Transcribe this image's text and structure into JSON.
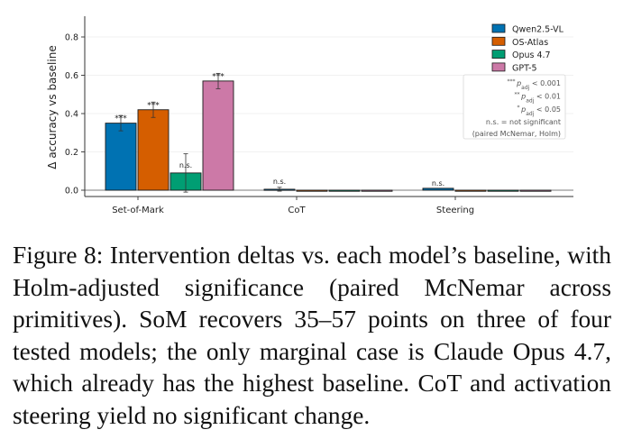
{
  "chart_data": {
    "type": "bar",
    "ylabel": "Δ accuracy vs baseline",
    "xlabel": "",
    "ylim": [
      -0.03,
      0.9
    ],
    "yticks": [
      "0.0",
      "0.2",
      "0.4",
      "0.6",
      "0.8"
    ],
    "categories": [
      "Set-of-Mark",
      "CoT",
      "Steering"
    ],
    "grid": "horizontal",
    "legend_position": "top-right",
    "series": [
      {
        "name": "Qwen2.5-VL",
        "color": "#0072B2",
        "values": [
          0.35,
          0.005,
          0.01
        ],
        "err": [
          0.04,
          0.01,
          0.0
        ],
        "sig": [
          "***",
          "n.s.",
          "n.s."
        ]
      },
      {
        "name": "OS-Atlas",
        "color": "#D55E00",
        "values": [
          0.42,
          0.0,
          0.0
        ],
        "err": [
          0.04,
          0.0,
          0.0
        ],
        "sig": [
          "***",
          "",
          ""
        ]
      },
      {
        "name": "Opus 4.7",
        "color": "#009E73",
        "values": [
          0.09,
          0.0,
          0.0
        ],
        "err": [
          0.1,
          0.0,
          0.0
        ],
        "sig": [
          "n.s.",
          "",
          ""
        ]
      },
      {
        "name": "GPT-5",
        "color": "#CC79A7",
        "values": [
          0.57,
          0.0,
          0.0
        ],
        "err": [
          0.04,
          0.0,
          0.0
        ],
        "sig": [
          "***",
          "",
          ""
        ]
      }
    ],
    "sig_notes": [
      {
        "prefix": "***",
        "text": "p",
        "sub": "adj",
        "suffix": " < 0.001"
      },
      {
        "prefix": "**",
        "text": "p",
        "sub": "adj",
        "suffix": " < 0.01"
      },
      {
        "prefix": "*",
        "text": "p",
        "sub": "adj",
        "suffix": " < 0.05"
      },
      {
        "prefix": "",
        "text": "n.s. = not significant",
        "sub": "",
        "suffix": ""
      },
      {
        "prefix": "",
        "text": "(paired McNemar, Holm)",
        "sub": "",
        "suffix": ""
      }
    ]
  },
  "caption": "Figure 8: Intervention deltas vs. each model’s baseline, with Holm-adjusted significance (paired McNemar across primitives). SoM recovers 35–57 points on three of four tested models; the only marginal case is Claude Opus 4.7, which already has the highest baseline. CoT and activation steering yield no significant change."
}
